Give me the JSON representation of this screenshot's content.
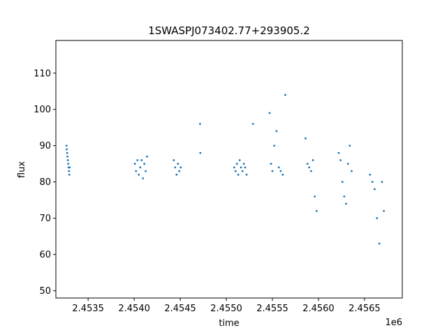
{
  "chart_data": {
    "type": "scatter",
    "title": "1SWASPJ073402.77+293905.2",
    "xlabel": "time",
    "ylabel": "flux",
    "x_offset_label": "1e6",
    "xlim": [
      2453150,
      2456910
    ],
    "ylim": [
      48,
      119
    ],
    "x_ticks": [
      2453500,
      2454000,
      2454500,
      2455000,
      2455500,
      2456000,
      2456500
    ],
    "x_tick_labels": [
      "2.4535",
      "2.4540",
      "2.4545",
      "2.4550",
      "2.4555",
      "2.4560",
      "2.4565"
    ],
    "y_ticks": [
      50,
      60,
      70,
      80,
      90,
      100,
      110
    ],
    "y_tick_labels": [
      "50",
      "60",
      "70",
      "80",
      "90",
      "100",
      "110"
    ],
    "grid": false,
    "legend": "none",
    "marker_color": "#1f77b4",
    "series": [
      {
        "x": [
          2453265,
          2453268,
          2453272,
          2453276,
          2453280,
          2453284,
          2453288,
          2453292,
          2453296,
          2453300,
          2454008,
          2454020,
          2454035,
          2454050,
          2454065,
          2454080,
          2454095,
          2454110,
          2454125,
          2454140,
          2454430,
          2454445,
          2454460,
          2454475,
          2454490,
          2454505,
          2454715,
          2454718,
          2455085,
          2455100,
          2455115,
          2455130,
          2455145,
          2455160,
          2455175,
          2455190,
          2455205,
          2455220,
          2455290,
          2455470,
          2455485,
          2455500,
          2455520,
          2455545,
          2455570,
          2455590,
          2455612,
          2455640,
          2455860,
          2455880,
          2455900,
          2455920,
          2455940,
          2455960,
          2455980,
          2456220,
          2456240,
          2456260,
          2456280,
          2456300,
          2456320,
          2456340,
          2456360,
          2456560,
          2456585,
          2456610,
          2456635,
          2456660,
          2456690,
          2456710
        ],
        "y": [
          90,
          89,
          88,
          87,
          86,
          85,
          84,
          83,
          82,
          84,
          85,
          83,
          86,
          82,
          84,
          86,
          81,
          85,
          83,
          87,
          86,
          84,
          82,
          85,
          83,
          84,
          96,
          88,
          84,
          83,
          85,
          82,
          86,
          84,
          83,
          85,
          84,
          82,
          96,
          99,
          85,
          83,
          90,
          94,
          84,
          83,
          82,
          104,
          92,
          85,
          84,
          83,
          86,
          76,
          72,
          88,
          86,
          80,
          76,
          74,
          85,
          90,
          83,
          82,
          80,
          78,
          70,
          63,
          80,
          72
        ]
      }
    ]
  }
}
